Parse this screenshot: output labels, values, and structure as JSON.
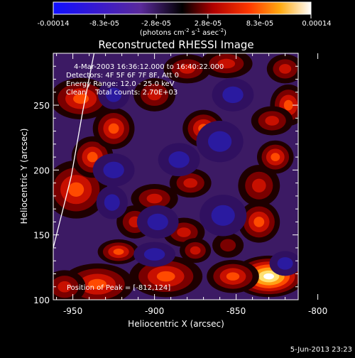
{
  "chart_data": {
    "type": "heatmap",
    "title": "Reconstructed RHESSI Image",
    "xlabel": "Heliocentric X (arcsec)",
    "ylabel": "Heliocentric Y (arcsec)",
    "xlim": [
      -962,
      -812
    ],
    "ylim": [
      100,
      290
    ],
    "x_ticks": [
      -950,
      -900,
      -850,
      -800
    ],
    "x_tick_labels": [
      "-950",
      "-900",
      "-850",
      "-800"
    ],
    "y_ticks": [
      100,
      150,
      200,
      250
    ],
    "y_tick_labels": [
      "100",
      "150",
      "200",
      "250"
    ],
    "colorbar": {
      "min": -0.00014,
      "max": 0.00014,
      "tick_labels": [
        "-0.00014",
        "-8.3e-05",
        "-2.8e-05",
        "2.8e-05",
        "8.3e-05",
        "0.00014"
      ],
      "unit_main": "(photons cm",
      "unit_sup1": "-2",
      "unit_s": " s",
      "unit_sup2": "-1",
      "unit_asec": " asec",
      "unit_sup3": "-2",
      "unit_close": ")"
    },
    "annotations": [
      "4-Mar-2003 16:36:12.000 to 16:40:22.000",
      "Detectors: 4F 5F 6F 7F 8F, Att 0",
      "Energy Range: 12.0 - 25.0 keV",
      "Clean    Total counts: 2.70E+03"
    ],
    "peak_label": "Position of Peak = [-812,124]",
    "peak_position": [
      -812,
      124
    ],
    "limb": [
      [
        -962,
        140
      ],
      [
        -951,
        195
      ],
      [
        -944,
        245
      ],
      [
        -937,
        290
      ]
    ],
    "blobs": [
      {
        "x": -830,
        "y": 118,
        "value": 1.0,
        "sx": 14,
        "sy": 10
      },
      {
        "x": -852,
        "y": 118,
        "value": 0.55,
        "sx": 10,
        "sy": 8
      },
      {
        "x": -893,
        "y": 118,
        "value": 0.6,
        "sx": 14,
        "sy": 10
      },
      {
        "x": -935,
        "y": 112,
        "value": 0.55,
        "sx": 14,
        "sy": 10
      },
      {
        "x": -955,
        "y": 110,
        "value": 0.45,
        "sx": 8,
        "sy": 8
      },
      {
        "x": -922,
        "y": 137,
        "value": 0.5,
        "sx": 8,
        "sy": 6
      },
      {
        "x": -882,
        "y": 152,
        "value": 0.45,
        "sx": 8,
        "sy": 7
      },
      {
        "x": -875,
        "y": 138,
        "value": 0.4,
        "sx": 6,
        "sy": 6
      },
      {
        "x": -855,
        "y": 142,
        "value": 0.35,
        "sx": 6,
        "sy": 6
      },
      {
        "x": -948,
        "y": 185,
        "value": 0.6,
        "sx": 12,
        "sy": 14
      },
      {
        "x": -938,
        "y": 210,
        "value": 0.55,
        "sx": 8,
        "sy": 10
      },
      {
        "x": -925,
        "y": 232,
        "value": 0.55,
        "sx": 8,
        "sy": 10
      },
      {
        "x": -945,
        "y": 255,
        "value": 0.55,
        "sx": 12,
        "sy": 10
      },
      {
        "x": -912,
        "y": 160,
        "value": 0.45,
        "sx": 7,
        "sy": 8
      },
      {
        "x": -900,
        "y": 178,
        "value": 0.45,
        "sx": 9,
        "sy": 7
      },
      {
        "x": -878,
        "y": 190,
        "value": 0.45,
        "sx": 8,
        "sy": 7
      },
      {
        "x": -870,
        "y": 232,
        "value": 0.5,
        "sx": 8,
        "sy": 9
      },
      {
        "x": -836,
        "y": 160,
        "value": 0.5,
        "sx": 8,
        "sy": 10
      },
      {
        "x": -836,
        "y": 188,
        "value": 0.45,
        "sx": 8,
        "sy": 10
      },
      {
        "x": -826,
        "y": 210,
        "value": 0.5,
        "sx": 7,
        "sy": 8
      },
      {
        "x": -818,
        "y": 250,
        "value": 0.5,
        "sx": 7,
        "sy": 10
      },
      {
        "x": -828,
        "y": 238,
        "value": 0.45,
        "sx": 8,
        "sy": 7
      },
      {
        "x": -900,
        "y": 258,
        "value": 0.45,
        "sx": 8,
        "sy": 8
      },
      {
        "x": -880,
        "y": 278,
        "value": 0.45,
        "sx": 9,
        "sy": 7
      },
      {
        "x": -856,
        "y": 282,
        "value": 0.45,
        "sx": 10,
        "sy": 7
      },
      {
        "x": -820,
        "y": 278,
        "value": 0.4,
        "sx": 7,
        "sy": 7
      },
      {
        "x": -860,
        "y": 222,
        "value": -0.4,
        "sx": 9,
        "sy": 10
      },
      {
        "x": -885,
        "y": 208,
        "value": -0.35,
        "sx": 8,
        "sy": 8
      },
      {
        "x": -898,
        "y": 160,
        "value": -0.3,
        "sx": 8,
        "sy": 8
      },
      {
        "x": -858,
        "y": 165,
        "value": -0.3,
        "sx": 9,
        "sy": 10
      },
      {
        "x": -925,
        "y": 258,
        "value": -0.3,
        "sx": 6,
        "sy": 7
      },
      {
        "x": -852,
        "y": 258,
        "value": -0.3,
        "sx": 8,
        "sy": 8
      },
      {
        "x": -900,
        "y": 135,
        "value": -0.2,
        "sx": 8,
        "sy": 6
      },
      {
        "x": -926,
        "y": 175,
        "value": -0.2,
        "sx": 6,
        "sy": 8
      },
      {
        "x": -820,
        "y": 128,
        "value": -0.2,
        "sx": 6,
        "sy": 6
      },
      {
        "x": -925,
        "y": 200,
        "value": -0.15,
        "sx": 8,
        "sy": 8
      }
    ]
  },
  "footer_date": "5-Jun-2013 23:23"
}
